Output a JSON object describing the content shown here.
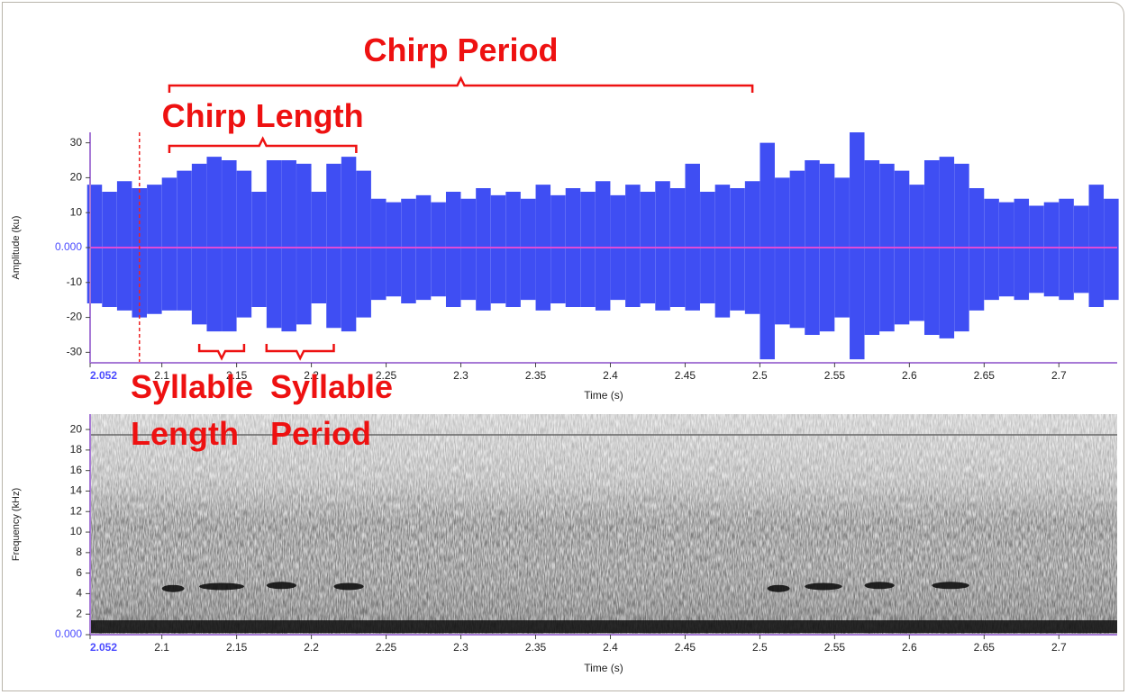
{
  "chart_data": [
    {
      "type": "envelope",
      "x_label": "Time (s)",
      "y_label": "Amplitude (ku)",
      "xlim": [
        2.052,
        2.739
      ],
      "ylim": [
        -33,
        33
      ],
      "xticks": [
        2.052,
        2.1,
        2.15,
        2.2,
        2.25,
        2.3,
        2.35,
        2.4,
        2.45,
        2.5,
        2.55,
        2.6,
        2.65,
        2.7
      ],
      "yticks": [
        30,
        20,
        10,
        {
          "value": 0,
          "label": "0.000"
        },
        -10,
        -20,
        -30
      ],
      "color": "#2f3ff2",
      "cursor_x": 2.085,
      "x": [
        2.055,
        2.065,
        2.075,
        2.085,
        2.095,
        2.105,
        2.115,
        2.125,
        2.135,
        2.145,
        2.155,
        2.165,
        2.175,
        2.185,
        2.195,
        2.205,
        2.215,
        2.225,
        2.235,
        2.245,
        2.255,
        2.265,
        2.275,
        2.285,
        2.295,
        2.305,
        2.315,
        2.325,
        2.335,
        2.345,
        2.355,
        2.365,
        2.375,
        2.385,
        2.395,
        2.405,
        2.415,
        2.425,
        2.435,
        2.445,
        2.455,
        2.465,
        2.475,
        2.485,
        2.495,
        2.505,
        2.515,
        2.525,
        2.535,
        2.545,
        2.555,
        2.565,
        2.575,
        2.585,
        2.595,
        2.605,
        2.615,
        2.625,
        2.635,
        2.645,
        2.655,
        2.665,
        2.675,
        2.685,
        2.695,
        2.705,
        2.715,
        2.725,
        2.735
      ],
      "high": [
        18,
        16,
        19,
        17,
        18,
        20,
        22,
        24,
        26,
        25,
        22,
        16,
        25,
        25,
        24,
        16,
        24,
        26,
        22,
        14,
        13,
        14,
        15,
        13,
        16,
        14,
        17,
        15,
        16,
        14,
        18,
        15,
        17,
        16,
        19,
        15,
        18,
        16,
        19,
        17,
        24,
        16,
        18,
        17,
        19,
        30,
        20,
        22,
        25,
        24,
        20,
        33,
        25,
        24,
        22,
        18,
        25,
        26,
        24,
        17,
        14,
        13,
        14,
        12,
        13,
        14,
        12,
        18,
        14
      ],
      "low": [
        -16,
        -17,
        -18,
        -20,
        -19,
        -18,
        -18,
        -22,
        -24,
        -24,
        -20,
        -17,
        -23,
        -24,
        -22,
        -16,
        -23,
        -24,
        -20,
        -15,
        -14,
        -16,
        -15,
        -14,
        -17,
        -15,
        -18,
        -16,
        -17,
        -15,
        -18,
        -16,
        -17,
        -17,
        -18,
        -15,
        -17,
        -16,
        -18,
        -17,
        -18,
        -16,
        -20,
        -18,
        -19,
        -32,
        -22,
        -23,
        -25,
        -24,
        -20,
        -32,
        -25,
        -24,
        -22,
        -21,
        -25,
        -26,
        -24,
        -18,
        -15,
        -14,
        -15,
        -13,
        -14,
        -15,
        -13,
        -17,
        -15
      ],
      "annotations": [
        {
          "text": "Chirp Period",
          "x": [
            2.105,
            2.495
          ]
        },
        {
          "text": "Chirp Length",
          "x": [
            2.105,
            2.23
          ]
        },
        {
          "text": "Syllable Length",
          "x": [
            2.125,
            2.155
          ]
        },
        {
          "text": "Syllable Period",
          "x": [
            2.17,
            2.215
          ]
        }
      ]
    },
    {
      "type": "spectrogram",
      "x_label": "Time (s)",
      "y_label": "Frequency (kHz)",
      "xlim": [
        2.052,
        2.739
      ],
      "ylim": [
        0,
        21.5
      ],
      "xticks": [
        2.052,
        2.1,
        2.15,
        2.2,
        2.25,
        2.3,
        2.35,
        2.4,
        2.45,
        2.5,
        2.55,
        2.6,
        2.65,
        2.7
      ],
      "yticks": [
        20,
        18,
        16,
        14,
        12,
        10,
        8,
        6,
        4,
        2,
        {
          "value": 0,
          "label": "0.000"
        }
      ],
      "events": [
        {
          "x": [
            2.1,
            2.115
          ],
          "freq": 4.5
        },
        {
          "x": [
            2.125,
            2.155
          ],
          "freq": 4.7
        },
        {
          "x": [
            2.17,
            2.19
          ],
          "freq": 4.8
        },
        {
          "x": [
            2.215,
            2.235
          ],
          "freq": 4.7
        },
        {
          "x": [
            2.505,
            2.52
          ],
          "freq": 4.5
        },
        {
          "x": [
            2.53,
            2.555
          ],
          "freq": 4.7
        },
        {
          "x": [
            2.57,
            2.59
          ],
          "freq": 4.8
        },
        {
          "x": [
            2.615,
            2.64
          ],
          "freq": 4.8
        }
      ]
    }
  ]
}
